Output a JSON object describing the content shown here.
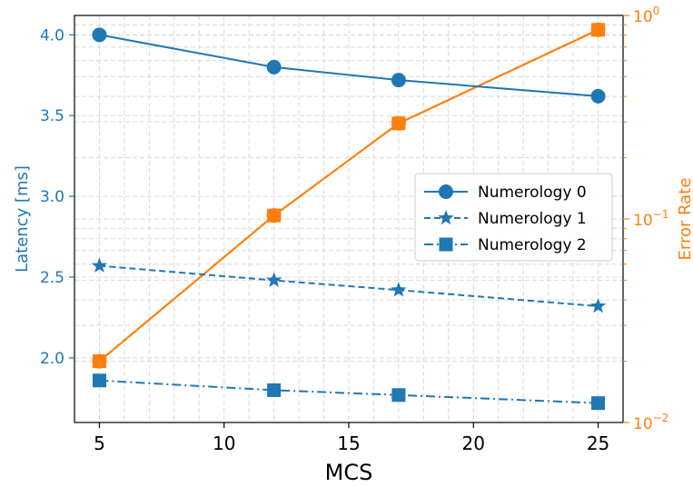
{
  "chart_data": {
    "type": "line",
    "xlabel": "MCS",
    "ylabel_left": "Latency [ms]",
    "ylabel_right": "Error Rate",
    "x": [
      5,
      12,
      17,
      25
    ],
    "xlim": [
      4,
      26
    ],
    "xticks": [
      5,
      10,
      15,
      20,
      25
    ],
    "ylim_left": [
      1.6,
      4.12
    ],
    "yticks_left": [
      "2.0",
      "2.5",
      "3.0",
      "3.5",
      "4.0"
    ],
    "ylim_right": [
      0.01,
      1.0
    ],
    "yscale_right": "log",
    "yticks_right": [
      "10^-2",
      "10^-1",
      "10^0"
    ],
    "grid": true,
    "legend_position": "center-right",
    "series": [
      {
        "name": "Numerology 0",
        "axis": "left",
        "values": [
          4.0,
          3.8,
          3.72,
          3.62
        ],
        "color": "#1f77b4",
        "linestyle": "solid",
        "marker": "circle"
      },
      {
        "name": "Numerology 1",
        "axis": "left",
        "values": [
          2.57,
          2.48,
          2.42,
          2.32
        ],
        "color": "#1f77b4",
        "linestyle": "dashed",
        "marker": "star"
      },
      {
        "name": "Numerology 2",
        "axis": "left",
        "values": [
          1.86,
          1.8,
          1.77,
          1.72
        ],
        "color": "#1f77b4",
        "linestyle": "dashdot",
        "marker": "square"
      },
      {
        "axis": "right",
        "values": [
          0.02,
          0.104,
          0.295,
          0.85
        ],
        "color": "#ff7f0e",
        "linestyle": "solid",
        "marker": "circle"
      },
      {
        "axis": "right",
        "values": [
          0.02,
          0.104,
          0.295,
          0.85
        ],
        "color": "#ff7f0e",
        "linestyle": "dashed",
        "marker": "star"
      },
      {
        "axis": "right",
        "values": [
          0.02,
          0.104,
          0.295,
          0.85
        ],
        "color": "#ff7f0e",
        "linestyle": "dashdot",
        "marker": "square"
      }
    ],
    "colors": {
      "left_axis": "#1f77b4",
      "right_axis": "#ff7f0e"
    }
  }
}
